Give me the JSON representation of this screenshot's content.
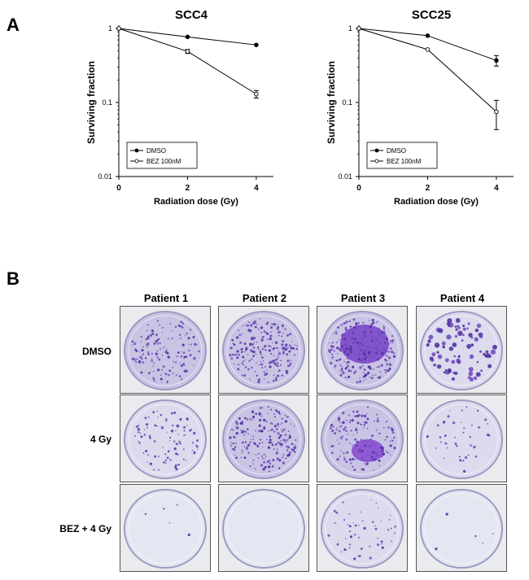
{
  "panels": {
    "A": "A",
    "B": "B"
  },
  "chart_data": [
    {
      "type": "line",
      "title": "SCC4",
      "xlabel": "Radiation dose (Gy)",
      "ylabel": "Surviving fraction",
      "yscale": "log",
      "xlim": [
        0,
        4.5
      ],
      "ylim": [
        0.01,
        1
      ],
      "xticks": [
        "0",
        "2",
        "4"
      ],
      "yticks": [
        "0.01",
        "0.1",
        "1"
      ],
      "legend_position": "bottom-left",
      "series": [
        {
          "name": "DMSO",
          "marker": "filled-circle",
          "x": [
            0,
            2,
            4
          ],
          "y": [
            1,
            0.77,
            0.6
          ],
          "err": [
            0,
            0,
            0
          ]
        },
        {
          "name": "BEZ 100nM",
          "marker": "open-circle",
          "x": [
            0,
            2,
            4
          ],
          "y": [
            1,
            0.49,
            0.13
          ],
          "err": [
            0,
            0.03,
            0.015
          ]
        }
      ]
    },
    {
      "type": "line",
      "title": "SCC25",
      "xlabel": "Radiation dose (Gy)",
      "ylabel": "Surviving fraction",
      "yscale": "log",
      "xlim": [
        0,
        4.5
      ],
      "ylim": [
        0.01,
        1
      ],
      "xticks": [
        "0",
        "2",
        "4"
      ],
      "yticks": [
        "0.01",
        "0.1",
        "1"
      ],
      "legend_position": "bottom-left",
      "series": [
        {
          "name": "DMSO",
          "marker": "filled-circle",
          "x": [
            0,
            2,
            4
          ],
          "y": [
            1,
            0.8,
            0.37
          ],
          "err": [
            0,
            0,
            0.06
          ]
        },
        {
          "name": "BEZ 100nM",
          "marker": "open-circle",
          "x": [
            0,
            2,
            4
          ],
          "y": [
            1,
            0.52,
            0.075
          ],
          "err": [
            0,
            0,
            0.032
          ]
        }
      ]
    }
  ],
  "panel_b": {
    "patients": [
      "Patient 1",
      "Patient 2",
      "Patient 3",
      "Patient 4"
    ],
    "conditions": [
      "DMSO",
      "4 Gy",
      "BEZ + 4 Gy"
    ],
    "colony_density": [
      [
        0.55,
        0.85,
        0.9,
        0.3
      ],
      [
        0.35,
        0.75,
        0.55,
        0.15
      ],
      [
        0.02,
        0.0,
        0.2,
        0.02
      ]
    ]
  }
}
